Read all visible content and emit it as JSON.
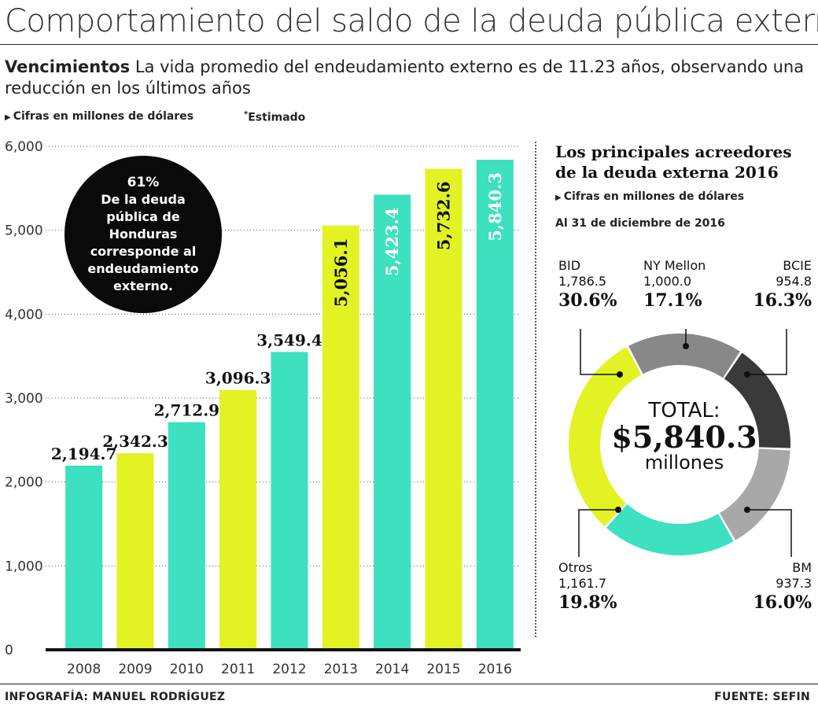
{
  "header": {
    "title": "Comportamiento del saldo de la deuda pública externa",
    "subtitle_bold": "Vencimientos",
    "subtitle_text": " La vida promedio del endeudamiento externo es de 11.23 años, observando una reducción en los últimos años",
    "note_units": "Cifras en millones de dólares",
    "note_estimated_mark": "*",
    "note_estimated": "Estimado"
  },
  "callout": {
    "percent": "61%",
    "message": "De la deuda pública de Honduras corresponde al endeudamiento externo."
  },
  "colors": {
    "teal": "#3de0bf",
    "lime": "#e2f223",
    "dark": "#3a3a3a",
    "gray": "#888888",
    "lightgray": "#a8a8a8"
  },
  "chart_data": [
    {
      "type": "bar",
      "title": "Comportamiento del saldo de la deuda pública externa",
      "categories": [
        "2008",
        "2009",
        "2010",
        "2011",
        "2012",
        "2013",
        "2014",
        "2015",
        "2016"
      ],
      "values": [
        2194.7,
        2342.3,
        2712.9,
        3096.3,
        3549.4,
        5056.1,
        5423.4,
        5732.6,
        5840.3
      ],
      "labels": [
        "2,194.7",
        "2,342.3",
        "2,712.9",
        "3,096.3",
        "3,549.4",
        "5,056.1",
        "5,423.4",
        "5,732.6",
        "5,840.3"
      ],
      "bar_colors": [
        "teal",
        "lime",
        "teal",
        "lime",
        "teal",
        "lime",
        "teal",
        "lime",
        "teal"
      ],
      "ylim": [
        0,
        6000
      ],
      "yticks": [
        0,
        1000,
        2000,
        3000,
        4000,
        5000,
        6000
      ],
      "ytick_labels": [
        "0",
        "1,000",
        "2,000",
        "3,000",
        "4,000",
        "5,000",
        "6,000"
      ],
      "grid": true,
      "xlabel": "",
      "ylabel": ""
    },
    {
      "type": "pie",
      "title": "Los principales acreedores de la deuda externa 2016",
      "note_units": "Cifras en millones de dólares",
      "date_label": "Al 31 de diciembre de 2016",
      "slices": [
        {
          "name": "NY Mellon",
          "value": 1000.0,
          "value_label": "1,000.0",
          "percent": "17.1%",
          "color": "gray"
        },
        {
          "name": "BCIE",
          "value": 954.8,
          "value_label": "954.8",
          "percent": "16.3%",
          "color": "dark"
        },
        {
          "name": "BM",
          "value": 937.3,
          "value_label": "937.3",
          "percent": "16.0%",
          "color": "lightgray"
        },
        {
          "name": "Otros",
          "value": 1161.7,
          "value_label": "1,161.7",
          "percent": "19.8%",
          "color": "teal"
        },
        {
          "name": "BID",
          "value": 1786.5,
          "value_label": "1,786.5",
          "percent": "30.6%",
          "color": "lime"
        }
      ],
      "total_label": "TOTAL:",
      "total_value": "$5,840.3",
      "total_unit": "millones"
    }
  ],
  "footer": {
    "credit": "INFOGRAFÍA: MANUEL RODRÍGUEZ",
    "source": "FUENTE: SEFIN"
  }
}
